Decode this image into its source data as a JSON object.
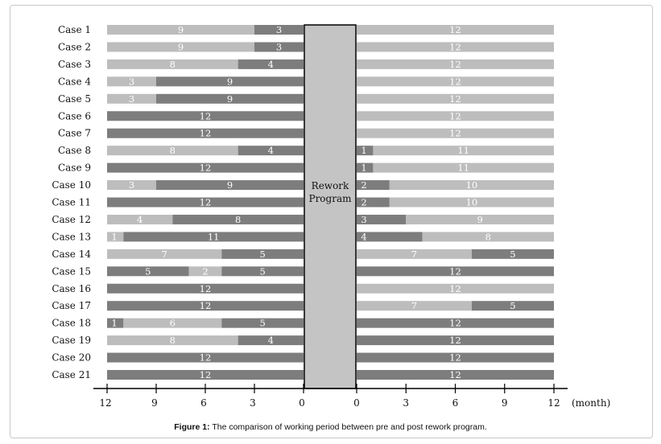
{
  "chart_data": {
    "type": "bar",
    "orientation": "horizontal",
    "layout": "mirrored",
    "center_label": [
      "Rework",
      "Program"
    ],
    "x_ticks_left": [
      "12",
      "9",
      "6",
      "3",
      "0"
    ],
    "x_ticks_right": [
      "0",
      "3",
      "6",
      "9",
      "12"
    ],
    "x_unit": "(month)",
    "xlim": [
      0,
      12
    ],
    "colors": {
      "light": "#bdbdbd",
      "dark": "#7d7d7d",
      "program": "#c4c4c4"
    },
    "cases": [
      {
        "name": "Case 1",
        "pre": [
          {
            "v": 9,
            "c": "light"
          },
          {
            "v": 3,
            "c": "dark"
          }
        ],
        "post": [
          {
            "v": 12,
            "c": "light"
          }
        ]
      },
      {
        "name": "Case 2",
        "pre": [
          {
            "v": 9,
            "c": "light"
          },
          {
            "v": 3,
            "c": "dark"
          }
        ],
        "post": [
          {
            "v": 12,
            "c": "light"
          }
        ]
      },
      {
        "name": "Case 3",
        "pre": [
          {
            "v": 8,
            "c": "light"
          },
          {
            "v": 4,
            "c": "dark"
          }
        ],
        "post": [
          {
            "v": 12,
            "c": "light"
          }
        ]
      },
      {
        "name": "Case 4",
        "pre": [
          {
            "v": 3,
            "c": "light"
          },
          {
            "v": 9,
            "c": "dark"
          }
        ],
        "post": [
          {
            "v": 12,
            "c": "light"
          }
        ]
      },
      {
        "name": "Case 5",
        "pre": [
          {
            "v": 3,
            "c": "light"
          },
          {
            "v": 9,
            "c": "dark"
          }
        ],
        "post": [
          {
            "v": 12,
            "c": "light"
          }
        ]
      },
      {
        "name": "Case 6",
        "pre": [
          {
            "v": 12,
            "c": "dark"
          }
        ],
        "post": [
          {
            "v": 12,
            "c": "light"
          }
        ]
      },
      {
        "name": "Case 7",
        "pre": [
          {
            "v": 12,
            "c": "dark"
          }
        ],
        "post": [
          {
            "v": 12,
            "c": "light"
          }
        ]
      },
      {
        "name": "Case 8",
        "pre": [
          {
            "v": 8,
            "c": "light"
          },
          {
            "v": 4,
            "c": "dark"
          }
        ],
        "post": [
          {
            "v": 1,
            "c": "dark"
          },
          {
            "v": 11,
            "c": "light"
          }
        ]
      },
      {
        "name": "Case 9",
        "pre": [
          {
            "v": 12,
            "c": "dark"
          }
        ],
        "post": [
          {
            "v": 1,
            "c": "dark"
          },
          {
            "v": 11,
            "c": "light"
          }
        ]
      },
      {
        "name": "Case 10",
        "pre": [
          {
            "v": 3,
            "c": "light"
          },
          {
            "v": 9,
            "c": "dark"
          }
        ],
        "post": [
          {
            "v": 2,
            "c": "dark"
          },
          {
            "v": 10,
            "c": "light"
          }
        ]
      },
      {
        "name": "Case 11",
        "pre": [
          {
            "v": 12,
            "c": "dark"
          }
        ],
        "post": [
          {
            "v": 2,
            "c": "dark"
          },
          {
            "v": 10,
            "c": "light"
          }
        ]
      },
      {
        "name": "Case 12",
        "pre": [
          {
            "v": 4,
            "c": "light"
          },
          {
            "v": 8,
            "c": "dark"
          }
        ],
        "post": [
          {
            "v": 3,
            "c": "dark"
          },
          {
            "v": 9,
            "c": "light"
          }
        ]
      },
      {
        "name": "Case 13",
        "pre": [
          {
            "v": 1,
            "c": "light"
          },
          {
            "v": 11,
            "c": "dark"
          }
        ],
        "post": [
          {
            "v": 4,
            "c": "dark"
          },
          {
            "v": 8,
            "c": "light"
          }
        ]
      },
      {
        "name": "Case 14",
        "pre": [
          {
            "v": 7,
            "c": "light"
          },
          {
            "v": 5,
            "c": "dark"
          }
        ],
        "post": [
          {
            "v": 7,
            "c": "light"
          },
          {
            "v": 5,
            "c": "dark"
          }
        ]
      },
      {
        "name": "Case 15",
        "pre": [
          {
            "v": 5,
            "c": "dark"
          },
          {
            "v": 2,
            "c": "light"
          },
          {
            "v": 5,
            "c": "dark"
          }
        ],
        "post": [
          {
            "v": 12,
            "c": "dark"
          }
        ]
      },
      {
        "name": "Case 16",
        "pre": [
          {
            "v": 12,
            "c": "dark"
          }
        ],
        "post": [
          {
            "v": 12,
            "c": "light"
          }
        ]
      },
      {
        "name": "Case 17",
        "pre": [
          {
            "v": 12,
            "c": "dark"
          }
        ],
        "post": [
          {
            "v": 7,
            "c": "light"
          },
          {
            "v": 5,
            "c": "dark"
          }
        ]
      },
      {
        "name": "Case 18",
        "pre": [
          {
            "v": 1,
            "c": "dark"
          },
          {
            "v": 6,
            "c": "light"
          },
          {
            "v": 5,
            "c": "dark"
          }
        ],
        "post": [
          {
            "v": 12,
            "c": "dark"
          }
        ]
      },
      {
        "name": "Case 19",
        "pre": [
          {
            "v": 8,
            "c": "light"
          },
          {
            "v": 4,
            "c": "dark"
          }
        ],
        "post": [
          {
            "v": 12,
            "c": "dark"
          }
        ]
      },
      {
        "name": "Case 20",
        "pre": [
          {
            "v": 12,
            "c": "dark"
          }
        ],
        "post": [
          {
            "v": 12,
            "c": "dark"
          }
        ]
      },
      {
        "name": "Case 21",
        "pre": [
          {
            "v": 12,
            "c": "dark"
          }
        ],
        "post": [
          {
            "v": 12,
            "c": "dark"
          }
        ]
      }
    ]
  },
  "caption": {
    "prefix": "Figure 1:",
    "text": " The comparison of working period between pre and post rework program."
  }
}
